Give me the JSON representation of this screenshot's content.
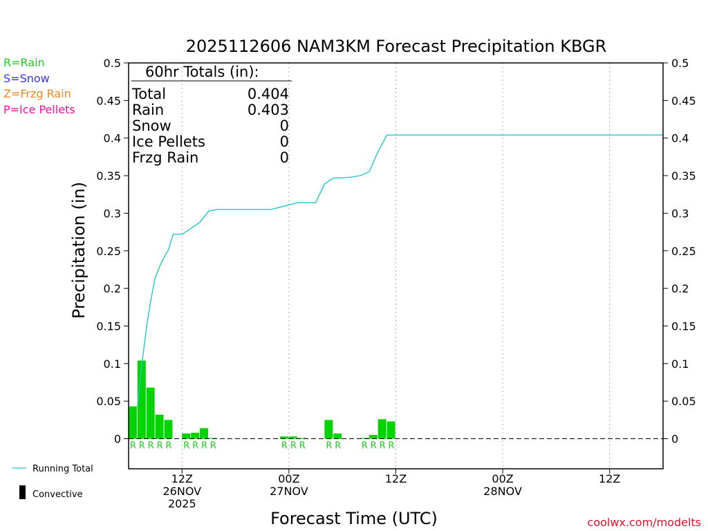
{
  "chart_data": {
    "type": "bar",
    "title": "2025112606 NAM3KM Forecast Precipitation KBGR",
    "ylabel": "Precipitation (in)",
    "xlabel": "Forecast Time (UTC)",
    "ylim": [
      -0.04,
      0.5
    ],
    "y_ticks": [
      0,
      0.05,
      0.1,
      0.15,
      0.2,
      0.25,
      0.3,
      0.35,
      0.4,
      0.45,
      0.5
    ],
    "y_tick_labels": [
      "0",
      "0.05",
      "0.1",
      "0.15",
      "0.2",
      "0.25",
      "0.3",
      "0.35",
      "0.4",
      "0.45",
      "0.5"
    ],
    "x_unit": "forecast hour",
    "xlim": [
      0,
      60
    ],
    "x_ticks": [
      {
        "hour": 6,
        "line1": "12Z",
        "line2": "26NOV",
        "line3": "2025"
      },
      {
        "hour": 18,
        "line1": "00Z",
        "line2": "27NOV",
        "line3": ""
      },
      {
        "hour": 30,
        "line1": "12Z",
        "line2": "",
        "line3": ""
      },
      {
        "hour": 42,
        "line1": "00Z",
        "line2": "28NOV",
        "line3": ""
      },
      {
        "hour": 54,
        "line1": "12Z",
        "line2": "",
        "line3": ""
      }
    ],
    "bars": {
      "name": "Hourly Precipitation (Rain)",
      "color": "#00d400",
      "hours": [
        1,
        2,
        3,
        4,
        5,
        6,
        7,
        8,
        9,
        10,
        11,
        12,
        13,
        14,
        15,
        16,
        17,
        18,
        19,
        20,
        21,
        22,
        23,
        24,
        25,
        26,
        27,
        28,
        29,
        30
      ],
      "values": [
        0.043,
        0.104,
        0.068,
        0.032,
        0.025,
        0.0,
        0.007,
        0.008,
        0.014,
        0.001,
        0.0,
        0.0,
        0.0,
        0.0,
        0.0,
        0.0,
        0.0,
        0.003,
        0.003,
        0.001,
        0.0,
        0.0,
        0.025,
        0.007,
        0.0,
        0.0,
        0.001,
        0.005,
        0.026,
        0.023
      ],
      "type_label_hours": [
        1,
        2,
        3,
        4,
        5,
        7,
        8,
        9,
        10,
        18,
        19,
        20,
        23,
        24,
        27,
        28,
        29,
        30
      ],
      "type_label": "R"
    },
    "series": [
      {
        "name": "Running Total",
        "color": "#1ec8c8",
        "x": [
          1,
          1.5,
          2,
          2.5,
          3,
          3.7,
          4.5,
          5,
          6,
          7,
          8,
          9,
          10,
          11,
          12,
          13,
          14,
          15,
          16,
          17,
          18,
          19,
          20,
          21,
          22,
          23,
          24,
          25,
          26,
          27,
          28,
          29,
          30,
          31,
          40,
          50,
          60
        ],
        "y": [
          0.043,
          0.1,
          0.147,
          0.185,
          0.215,
          0.235,
          0.252,
          0.272,
          0.272,
          0.28,
          0.288,
          0.303,
          0.305,
          0.305,
          0.305,
          0.305,
          0.305,
          0.305,
          0.305,
          0.308,
          0.311,
          0.314,
          0.314,
          0.314,
          0.339,
          0.347,
          0.347,
          0.348,
          0.35,
          0.355,
          0.382,
          0.404,
          0.404,
          0.404,
          0.404,
          0.404,
          0.404
        ]
      }
    ],
    "legend": {
      "position": "bottom-left",
      "items": [
        {
          "label": "Running Total",
          "color": "#1ec8c8",
          "kind": "line"
        },
        {
          "label": "Convective",
          "color": "#000000",
          "kind": "bar"
        }
      ]
    },
    "type_legend": [
      {
        "label": "R=Rain",
        "color": "#22cc22"
      },
      {
        "label": "S=Snow",
        "color": "#3333ee"
      },
      {
        "label": "Z=Frzg Rain",
        "color": "#ee8822"
      },
      {
        "label": "P=Ice Pellets",
        "color": "#ee1199"
      }
    ],
    "totals": {
      "header": "60hr Totals (in):",
      "rows": [
        {
          "label": "Total",
          "value": "0.404"
        },
        {
          "label": "Rain",
          "value": "0.403"
        },
        {
          "label": "Snow",
          "value": "0"
        },
        {
          "label": "Ice Pellets",
          "value": "0"
        },
        {
          "label": "Frzg Rain",
          "value": "0"
        }
      ]
    },
    "credit": "coolwx.com/modelts",
    "credit_color": "#e0102a"
  }
}
